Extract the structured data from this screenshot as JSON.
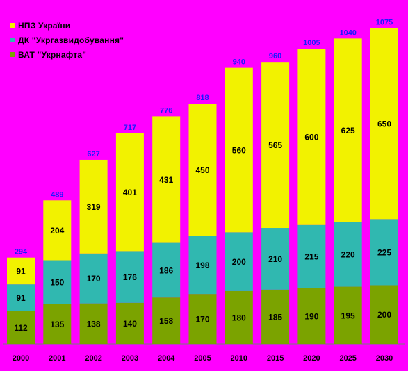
{
  "chart_data": {
    "type": "bar",
    "stacked": true,
    "categories": [
      "2000",
      "2001",
      "2002",
      "2003",
      "2004",
      "2005",
      "2010",
      "2015",
      "2020",
      "2025",
      "2030"
    ],
    "series": [
      {
        "name": "ВАТ \"Укрнафта\"",
        "color": "#7ba300",
        "values": [
          112,
          135,
          138,
          140,
          158,
          170,
          180,
          185,
          190,
          195,
          200
        ]
      },
      {
        "name": "ДК \"Укргазвидобування\"",
        "color": "#30b8b0",
        "values": [
          91,
          150,
          170,
          176,
          186,
          198,
          200,
          210,
          215,
          220,
          225
        ]
      },
      {
        "name": "НПЗ України",
        "color": "#f2f200",
        "values": [
          91,
          204,
          319,
          401,
          431,
          450,
          560,
          565,
          600,
          625,
          650
        ]
      }
    ],
    "totals": [
      294,
      489,
      627,
      717,
      776,
      818,
      940,
      960,
      1005,
      1040,
      1075
    ],
    "ylim": [
      0,
      1100
    ],
    "grid": false,
    "legend_position": "top-left",
    "title": "",
    "xlabel": "",
    "ylabel": ""
  },
  "legend": [
    {
      "label": "НПЗ України",
      "color": "#f2f200"
    },
    {
      "label": "ДК \"Укргазвидобування\"",
      "color": "#30b8b0"
    },
    {
      "label": "ВАТ \"Укрнафта\"",
      "color": "#7ba300"
    }
  ],
  "colors": {
    "background": "#ff00ff",
    "total_label": "#1a1aff",
    "axis": "#7a7a7a"
  }
}
